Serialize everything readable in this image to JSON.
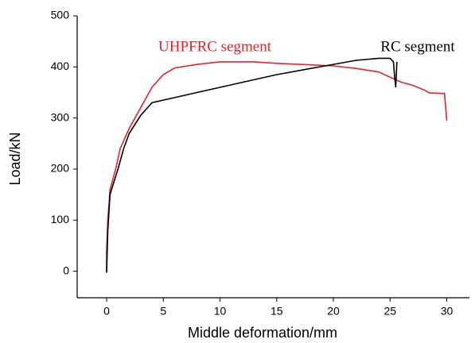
{
  "chart_data": {
    "type": "line",
    "x_label": "Middle deformation/mm",
    "y_label": "Load/kN",
    "xlim": [
      -2.6,
      32
    ],
    "ylim": [
      -52,
      500
    ],
    "xticks": [
      0,
      5,
      10,
      15,
      20,
      25,
      30
    ],
    "yticks": [
      0,
      100,
      200,
      300,
      400,
      500
    ],
    "series": [
      {
        "name": "UHPFRC segment",
        "color": "#e8202a",
        "x": [
          0,
          0,
          0.1,
          0.3,
          0.8,
          1.2,
          2,
          3,
          4,
          5,
          6,
          8,
          10,
          13,
          15,
          18,
          20,
          22,
          24,
          25,
          26,
          27,
          28,
          28.5,
          29.8,
          30
        ],
        "values": [
          0,
          40,
          100,
          160,
          200,
          240,
          280,
          320,
          360,
          385,
          398,
          405,
          410,
          410,
          407,
          404,
          402,
          397,
          390,
          380,
          370,
          364,
          355,
          349,
          348,
          295
        ]
      },
      {
        "name": "RC segment",
        "color": "#000000",
        "x": [
          0,
          0.1,
          0.3,
          0.5,
          1,
          1.5,
          2,
          3,
          4,
          6,
          10,
          15,
          20,
          22,
          24,
          25,
          25.3,
          25.4,
          25.5,
          25.6
        ],
        "values": [
          -3,
          80,
          150,
          165,
          200,
          240,
          270,
          305,
          330,
          340,
          360,
          385,
          405,
          413,
          417,
          417,
          410,
          380,
          360,
          410
        ]
      }
    ]
  }
}
